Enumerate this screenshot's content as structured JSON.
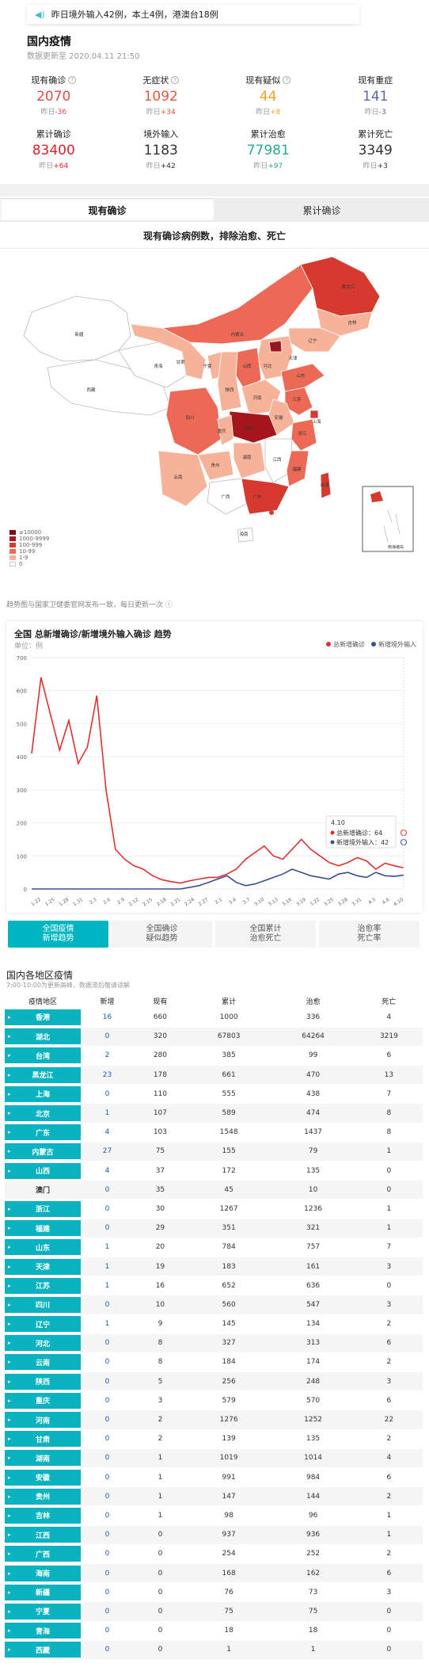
{
  "notice": {
    "text": "昨日境外输入42例，本土4例，港澳台18例"
  },
  "header": {
    "title": "国内疫情",
    "timestamp": "数据更新至 2020.04.11 21:50"
  },
  "stats": [
    {
      "label": "现有确诊",
      "value": "2070",
      "delta_prefix": "昨日",
      "delta": "-36",
      "color": "#e44c4c",
      "help": true
    },
    {
      "label": "无症状",
      "value": "1092",
      "delta_prefix": "昨日",
      "delta": "+34",
      "color": "#e45a3e",
      "help": true
    },
    {
      "label": "现有疑似",
      "value": "44",
      "delta_prefix": "昨日",
      "delta": "+8",
      "color": "#f2a223",
      "help": true
    },
    {
      "label": "现有重症",
      "value": "141",
      "delta_prefix": "昨日",
      "delta": "-3",
      "color": "#5b6aa6",
      "help": false
    },
    {
      "label": "累计确诊",
      "value": "83400",
      "delta_prefix": "昨日",
      "delta": "+64",
      "color": "#d9232a",
      "help": false
    },
    {
      "label": "境外输入",
      "value": "1183",
      "delta_prefix": "昨日",
      "delta": "+42",
      "color": "#333333",
      "help": false
    },
    {
      "label": "累计治愈",
      "value": "77981",
      "delta_prefix": "昨日",
      "delta": "+97",
      "color": "#2aa98f",
      "help": false
    },
    {
      "label": "累计死亡",
      "value": "3349",
      "delta_prefix": "昨日",
      "delta": "+3",
      "color": "#333333",
      "help": false
    }
  ],
  "tabs": [
    {
      "label": "现有确诊"
    },
    {
      "label": "累计确诊"
    }
  ],
  "map": {
    "subtitle": "现有确诊病例数，排除治愈、死亡",
    "legend": [
      {
        "label": "≥10000",
        "color": "#700d13"
      },
      {
        "label": "1000-9999",
        "color": "#a4161c"
      },
      {
        "label": "100-999",
        "color": "#d63a2f"
      },
      {
        "label": "10-99",
        "color": "#ec6a55"
      },
      {
        "label": "1-9",
        "color": "#f7b39a"
      },
      {
        "label": "0",
        "color": "#ffffff"
      }
    ],
    "labels": [
      "新疆",
      "西藏",
      "青海",
      "甘肃",
      "内蒙古",
      "黑龙江",
      "吉林",
      "辽宁",
      "北京",
      "天津",
      "河北",
      "山西",
      "宁夏",
      "陕西",
      "四川",
      "重庆",
      "湖北",
      "河南",
      "山东",
      "江苏",
      "安徽",
      "上海",
      "浙江",
      "湖南",
      "江西",
      "福建",
      "贵州",
      "云南",
      "广西",
      "广东",
      "海南",
      "台湾"
    ],
    "inset_label": "南海诸岛"
  },
  "note": "趋势图与国家卫健委官网发布一致，每日更新一次",
  "chart": {
    "title": "全国 总新增确诊/新增境外输入确诊 趋势",
    "unit": "单位：例",
    "tooltip": {
      "date": "4.10",
      "line1": "总新增确诊：64",
      "line2": "新增境外输入：42"
    }
  },
  "chart_data": {
    "type": "line",
    "ylim": [
      0,
      700
    ],
    "yticks": [
      "0",
      "100",
      "200",
      "300",
      "400",
      "500",
      "600",
      "700"
    ],
    "xticks": [
      "1.22",
      "1.25",
      "1.28",
      "1.31",
      "2.3",
      "2.6",
      "2.9",
      "2.12",
      "2.15",
      "2.18",
      "2.21",
      "2.24",
      "2.27",
      "3.1",
      "3.4",
      "3.7",
      "3.10",
      "3.13",
      "3.16",
      "3.19",
      "3.22",
      "3.25",
      "3.28",
      "3.31",
      "4.3",
      "4.6",
      "4.10"
    ],
    "series": [
      {
        "name": "总新增确诊",
        "color": "#e02f32",
        "values": [
          410,
          640,
          530,
          420,
          510,
          380,
          430,
          585,
          300,
          120,
          90,
          70,
          60,
          40,
          28,
          22,
          18,
          25,
          30,
          35,
          35,
          45,
          60,
          90,
          110,
          130,
          100,
          90,
          120,
          150,
          120,
          100,
          80,
          70,
          80,
          95,
          85,
          60,
          78,
          70,
          64
        ]
      },
      {
        "name": "新增境外输入",
        "color": "#3b4f8e",
        "values": [
          0,
          0,
          0,
          0,
          0,
          0,
          0,
          0,
          0,
          0,
          0,
          0,
          0,
          0,
          0,
          0,
          0,
          5,
          10,
          20,
          30,
          40,
          20,
          10,
          15,
          25,
          35,
          45,
          60,
          50,
          40,
          35,
          30,
          45,
          50,
          40,
          35,
          50,
          40,
          38,
          42
        ]
      }
    ]
  },
  "mode_buttons": [
    {
      "line1": "全国疫情",
      "line2": "新增趋势",
      "active": true
    },
    {
      "line1": "全国确诊",
      "line2": "疑似趋势",
      "active": false
    },
    {
      "line1": "全国累计",
      "line2": "治愈死亡",
      "active": false
    },
    {
      "line1": "治愈率",
      "line2": "死亡率",
      "active": false
    }
  ],
  "region_table": {
    "title": "国内各地区疫情",
    "subtitle": "7:00-10:00为更新高峰，数据滞后敬请谅解",
    "headers": [
      "疫情地区",
      "新增",
      "现有",
      "累计",
      "治愈",
      "死亡"
    ],
    "rows": [
      {
        "name": "香港",
        "plain": false,
        "new": "16",
        "current": "660",
        "total": "1000",
        "cured": "336",
        "dead": "4"
      },
      {
        "name": "湖北",
        "plain": false,
        "new": "0",
        "current": "320",
        "total": "67803",
        "cured": "64264",
        "dead": "3219"
      },
      {
        "name": "台湾",
        "plain": false,
        "new": "2",
        "current": "280",
        "total": "385",
        "cured": "99",
        "dead": "6"
      },
      {
        "name": "黑龙江",
        "plain": false,
        "new": "23",
        "current": "178",
        "total": "661",
        "cured": "470",
        "dead": "13"
      },
      {
        "name": "上海",
        "plain": false,
        "new": "0",
        "current": "110",
        "total": "555",
        "cured": "438",
        "dead": "7"
      },
      {
        "name": "北京",
        "plain": false,
        "new": "1",
        "current": "107",
        "total": "589",
        "cured": "474",
        "dead": "8"
      },
      {
        "name": "广东",
        "plain": false,
        "new": "4",
        "current": "103",
        "total": "1548",
        "cured": "1437",
        "dead": "8"
      },
      {
        "name": "内蒙古",
        "plain": false,
        "new": "27",
        "current": "75",
        "total": "155",
        "cured": "79",
        "dead": "1"
      },
      {
        "name": "山西",
        "plain": false,
        "new": "4",
        "current": "37",
        "total": "172",
        "cured": "135",
        "dead": "0"
      },
      {
        "name": "澳门",
        "plain": true,
        "new": "0",
        "current": "35",
        "total": "45",
        "cured": "10",
        "dead": "0"
      },
      {
        "name": "浙江",
        "plain": false,
        "new": "0",
        "current": "30",
        "total": "1267",
        "cured": "1236",
        "dead": "1"
      },
      {
        "name": "福建",
        "plain": false,
        "new": "0",
        "current": "29",
        "total": "351",
        "cured": "321",
        "dead": "1"
      },
      {
        "name": "山东",
        "plain": false,
        "new": "1",
        "current": "20",
        "total": "784",
        "cured": "757",
        "dead": "7"
      },
      {
        "name": "天津",
        "plain": false,
        "new": "1",
        "current": "19",
        "total": "183",
        "cured": "161",
        "dead": "3"
      },
      {
        "name": "江苏",
        "plain": false,
        "new": "1",
        "current": "16",
        "total": "652",
        "cured": "636",
        "dead": "0"
      },
      {
        "name": "四川",
        "plain": false,
        "new": "0",
        "current": "10",
        "total": "560",
        "cured": "547",
        "dead": "3"
      },
      {
        "name": "辽宁",
        "plain": false,
        "new": "1",
        "current": "9",
        "total": "145",
        "cured": "134",
        "dead": "2"
      },
      {
        "name": "河北",
        "plain": false,
        "new": "0",
        "current": "8",
        "total": "327",
        "cured": "313",
        "dead": "6"
      },
      {
        "name": "云南",
        "plain": false,
        "new": "0",
        "current": "8",
        "total": "184",
        "cured": "174",
        "dead": "2"
      },
      {
        "name": "陕西",
        "plain": false,
        "new": "0",
        "current": "5",
        "total": "256",
        "cured": "248",
        "dead": "3"
      },
      {
        "name": "重庆",
        "plain": false,
        "new": "0",
        "current": "3",
        "total": "579",
        "cured": "570",
        "dead": "6"
      },
      {
        "name": "河南",
        "plain": false,
        "new": "0",
        "current": "2",
        "total": "1276",
        "cured": "1252",
        "dead": "22"
      },
      {
        "name": "甘肃",
        "plain": false,
        "new": "0",
        "current": "2",
        "total": "139",
        "cured": "135",
        "dead": "2"
      },
      {
        "name": "湖南",
        "plain": false,
        "new": "0",
        "current": "1",
        "total": "1019",
        "cured": "1014",
        "dead": "4"
      },
      {
        "name": "安徽",
        "plain": false,
        "new": "0",
        "current": "1",
        "total": "991",
        "cured": "984",
        "dead": "6"
      },
      {
        "name": "贵州",
        "plain": false,
        "new": "0",
        "current": "1",
        "total": "147",
        "cured": "144",
        "dead": "2"
      },
      {
        "name": "吉林",
        "plain": false,
        "new": "0",
        "current": "1",
        "total": "98",
        "cured": "96",
        "dead": "1"
      },
      {
        "name": "江西",
        "plain": false,
        "new": "0",
        "current": "0",
        "total": "937",
        "cured": "936",
        "dead": "1"
      },
      {
        "name": "广西",
        "plain": false,
        "new": "0",
        "current": "0",
        "total": "254",
        "cured": "252",
        "dead": "2"
      },
      {
        "name": "海南",
        "plain": false,
        "new": "0",
        "current": "0",
        "total": "168",
        "cured": "162",
        "dead": "6"
      },
      {
        "name": "新疆",
        "plain": false,
        "new": "0",
        "current": "0",
        "total": "76",
        "cured": "73",
        "dead": "3"
      },
      {
        "name": "宁夏",
        "plain": false,
        "new": "0",
        "current": "0",
        "total": "75",
        "cured": "75",
        "dead": "0"
      },
      {
        "name": "青海",
        "plain": false,
        "new": "0",
        "current": "0",
        "total": "18",
        "cured": "18",
        "dead": "0"
      },
      {
        "name": "西藏",
        "plain": false,
        "new": "0",
        "current": "0",
        "total": "1",
        "cured": "1",
        "dead": "0"
      }
    ]
  }
}
